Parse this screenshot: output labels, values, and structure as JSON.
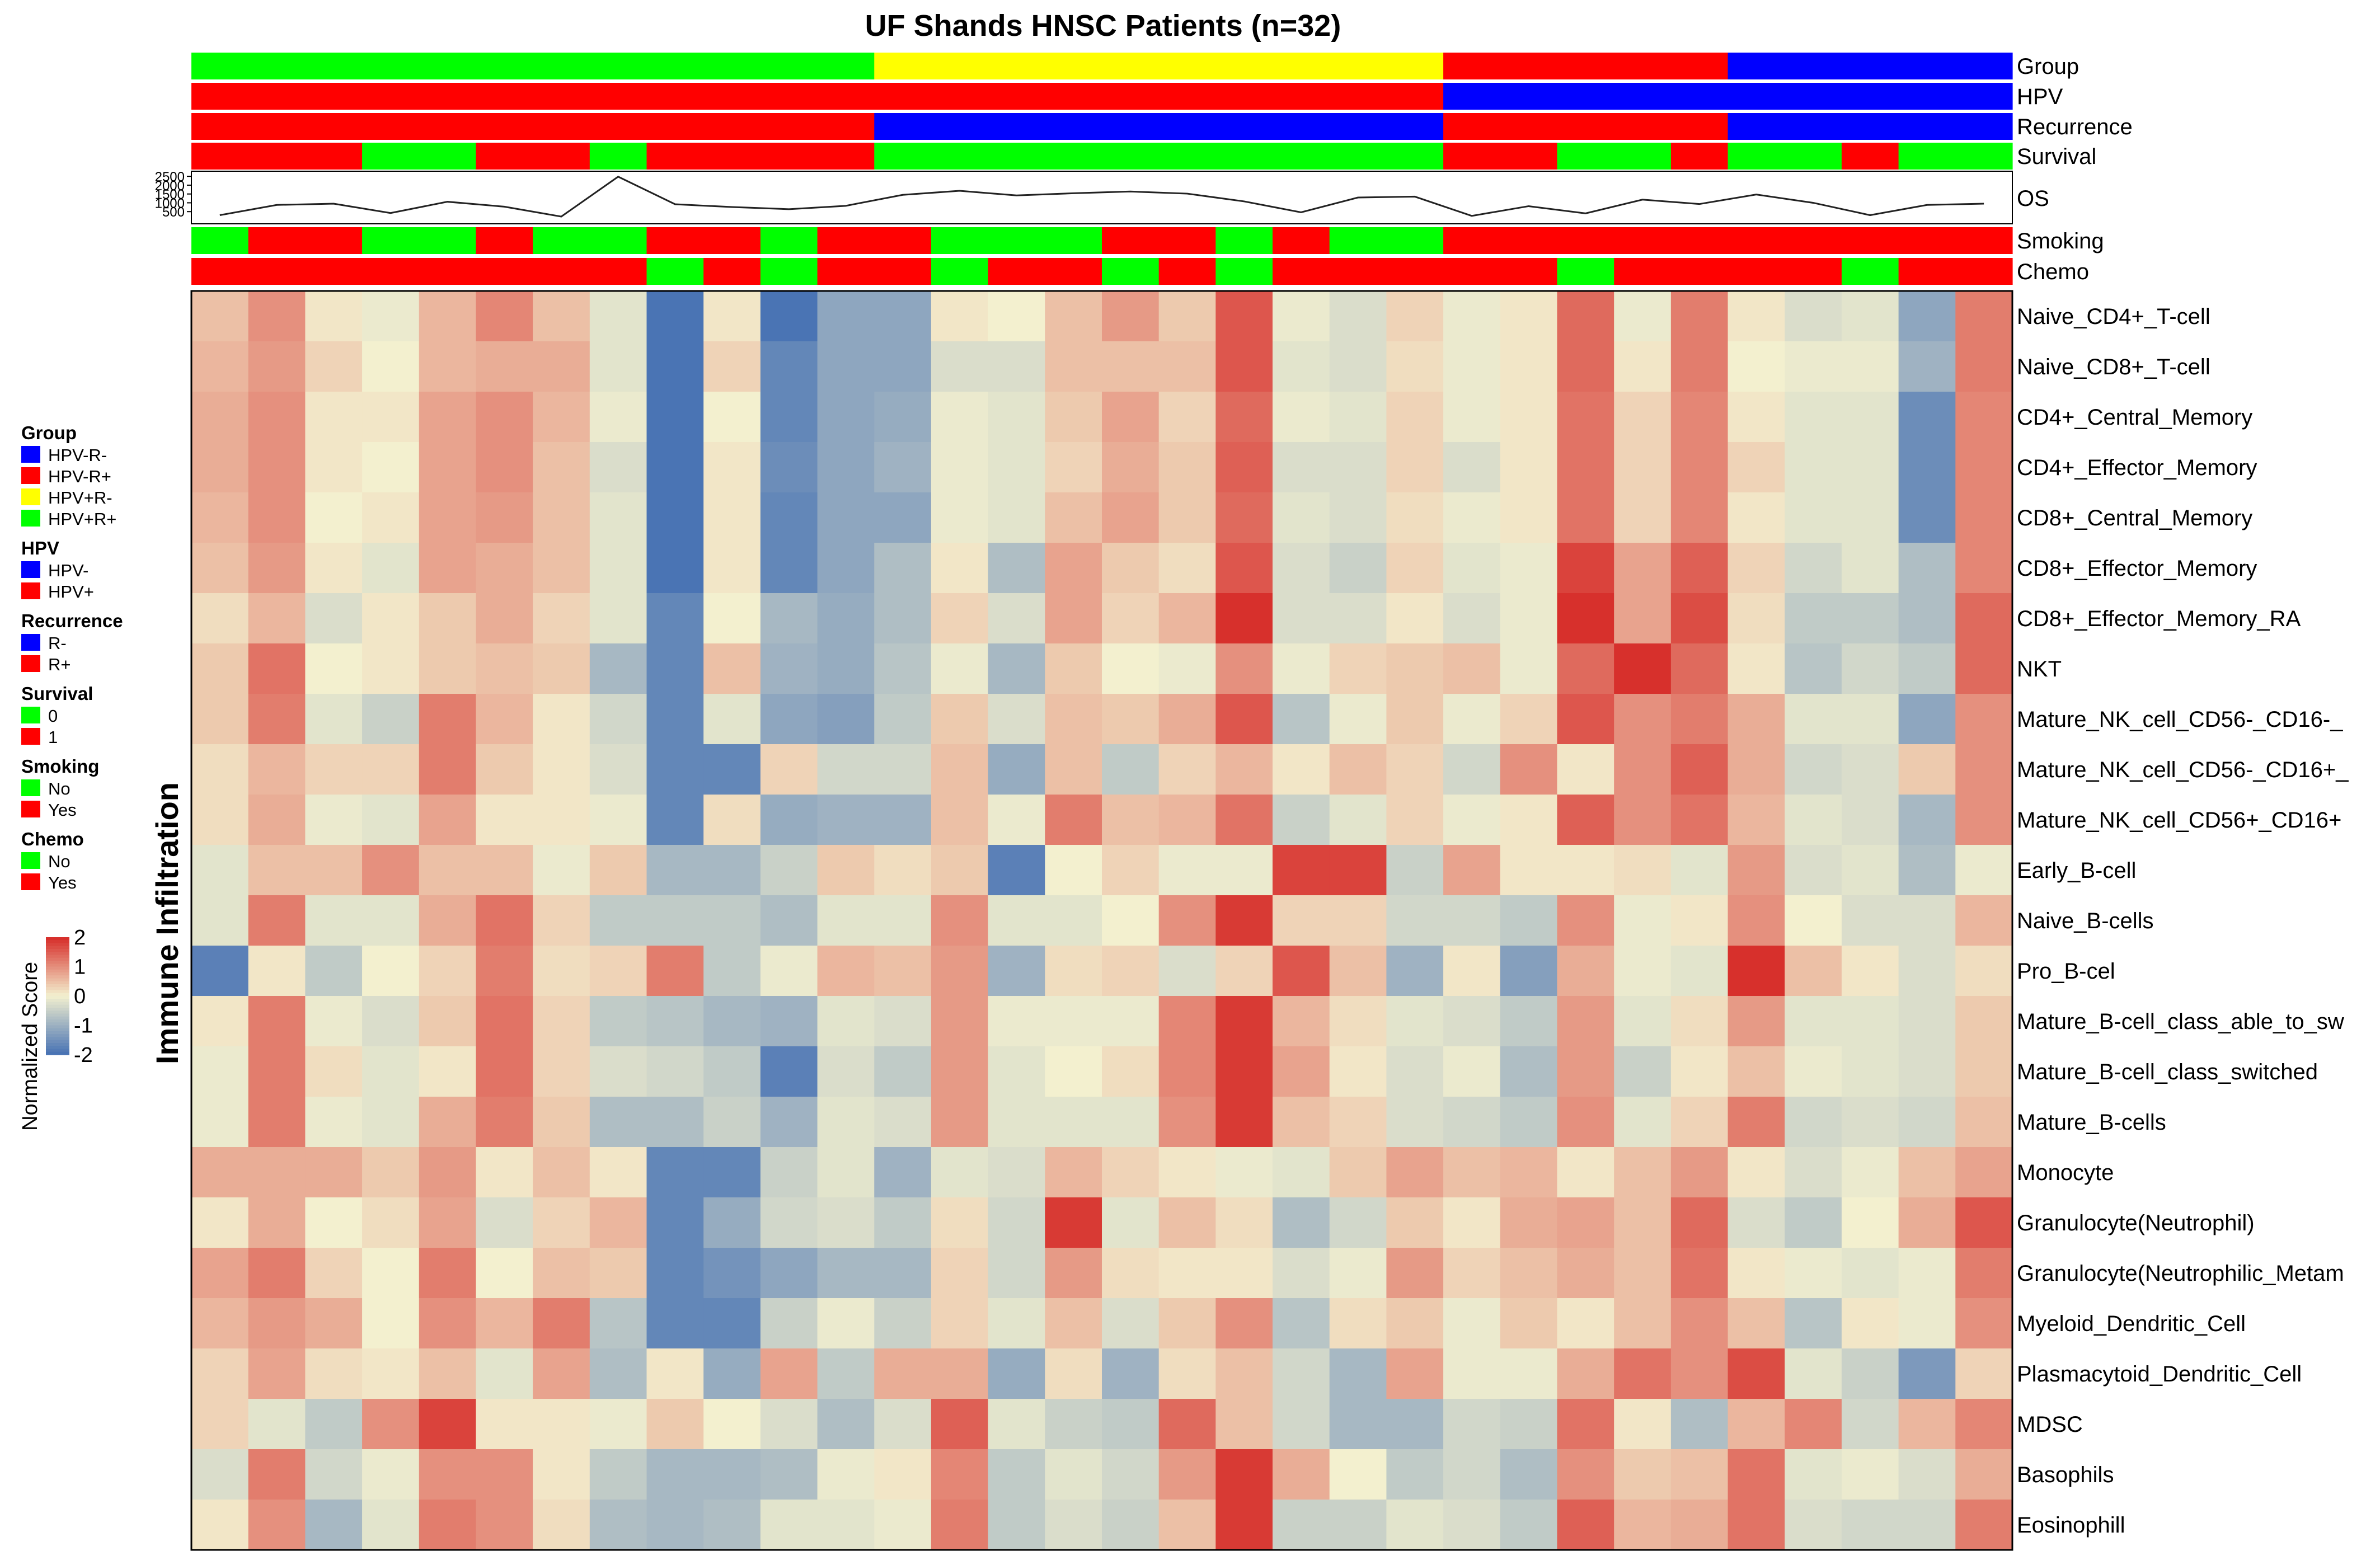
{
  "chart_data": {
    "type": "heatmap",
    "title": "UF Shands HNSC Patients (n=32)",
    "ylabel": "Immune Infiltration",
    "colorbar": {
      "label": "Normalized Score",
      "ticks": [
        "2",
        "1",
        "0",
        "-1",
        "-2"
      ],
      "range": [
        -2,
        2
      ],
      "colors": {
        "low": "#4a74b4",
        "mid": "#f3f0cf",
        "high": "#d7302c"
      }
    },
    "legend": [
      {
        "title": "Group",
        "entries": [
          {
            "label": "HPV-R-",
            "color": "#0000ff"
          },
          {
            "label": "HPV-R+",
            "color": "#ff0000"
          },
          {
            "label": "HPV+R-",
            "color": "#ffff00"
          },
          {
            "label": "HPV+R+",
            "color": "#00ff00"
          }
        ]
      },
      {
        "title": "HPV",
        "entries": [
          {
            "label": "HPV-",
            "color": "#0000ff"
          },
          {
            "label": "HPV+",
            "color": "#ff0000"
          }
        ]
      },
      {
        "title": "Recurrence",
        "entries": [
          {
            "label": "R-",
            "color": "#0000ff"
          },
          {
            "label": "R+",
            "color": "#ff0000"
          }
        ]
      },
      {
        "title": "Survival",
        "entries": [
          {
            "label": "0",
            "color": "#00ff00"
          },
          {
            "label": "1",
            "color": "#ff0000"
          }
        ]
      },
      {
        "title": "Smoking",
        "entries": [
          {
            "label": "No",
            "color": "#00ff00"
          },
          {
            "label": "Yes",
            "color": "#ff0000"
          }
        ]
      },
      {
        "title": "Chemo",
        "entries": [
          {
            "label": "No",
            "color": "#00ff00"
          },
          {
            "label": "Yes",
            "color": "#ff0000"
          }
        ]
      }
    ],
    "annotations": {
      "codes": {
        "G": "#00ff00",
        "R": "#ff0000",
        "B": "#0000ff",
        "Y": "#ffff00"
      },
      "tracks": [
        {
          "name": "Group",
          "values": "GGGGGGGGGGGGYYYYYYYYYYRRRRRBBBBB"
        },
        {
          "name": "HPV",
          "values": "RRRRRRRRRRRRRRRRRRRRRRBBBBBBBBBB"
        },
        {
          "name": "Recurrence",
          "values": "RRRRRRRRRRRRBBBBBBBBBBRRRRRBBBBB"
        },
        {
          "name": "Survival",
          "values": "RRRGGRRGRRRRGGGGGGGGGGRRGGRGGRGG"
        }
      ],
      "tracks_lower": [
        {
          "name": "Smoking",
          "values": "GRRGGRGGRRGRRGGGRRGRGGRRRRRRRRRR"
        },
        {
          "name": "Chemo",
          "values": "RRRRRRRRGRGRRGRRGRGRRRRRGRRRRGRR"
        }
      ]
    },
    "os_track": {
      "name": "OS",
      "yticks": [
        "2500",
        "2000",
        "1500",
        "1000",
        "500"
      ],
      "ymin": 0,
      "ymax": 2600,
      "values": [
        300,
        880,
        950,
        420,
        1060,
        780,
        220,
        2480,
        920,
        760,
        640,
        830,
        1450,
        1680,
        1420,
        1540,
        1640,
        1520,
        1080,
        460,
        1300,
        1350,
        260,
        810,
        400,
        1180,
        930,
        1470,
        1000,
        300,
        880,
        950
      ]
    },
    "rows": [
      "Naive_CD4+_T-cell",
      "Naive_CD8+_T-cell",
      "CD4+_Central_Memory",
      "CD4+_Effector_Memory",
      "CD8+_Central_Memory",
      "CD8+_Effector_Memory",
      "CD8+_Effector_Memory_RA",
      "NKT",
      "Mature_NK_cell_CD56-_CD16-_",
      "Mature_NK_cell_CD56-_CD16+_",
      "Mature_NK_cell_CD56+_CD16+",
      "Early_B-cell",
      "Naive_B-cells",
      "Pro_B-cel",
      "Mature_B-cell_class_able_to_sw",
      "Mature_B-cell_class_switched",
      "Mature_B-cells",
      "Monocyte",
      "Granulocyte(Neutrophil)",
      "Granulocyte(Neutrophilic_Metam",
      "Myeloid_Dendritic_Cell",
      "Plasmacytoid_Dendritic_Cell",
      "MDSC",
      "Basophils",
      "Eosinophill"
    ],
    "values": [
      [
        0.5,
        1.0,
        0.1,
        -0.1,
        0.6,
        1.1,
        0.5,
        -0.2,
        -2.0,
        0.1,
        -2.0,
        -1.2,
        -1.2,
        0.1,
        0.0,
        0.5,
        0.9,
        0.4,
        1.6,
        -0.1,
        -0.3,
        0.3,
        -0.1,
        0.1,
        1.4,
        -0.1,
        1.2,
        0.1,
        -0.3,
        -0.2,
        -1.2,
        1.2
      ],
      [
        0.6,
        0.9,
        0.3,
        0.0,
        0.6,
        0.7,
        0.7,
        -0.2,
        -2.0,
        0.3,
        -1.7,
        -1.2,
        -1.2,
        -0.3,
        -0.3,
        0.5,
        0.5,
        0.5,
        1.6,
        -0.2,
        -0.3,
        0.2,
        -0.1,
        0.1,
        1.4,
        0.1,
        1.2,
        0.0,
        -0.1,
        -0.1,
        -1.0,
        1.2
      ],
      [
        0.7,
        1.0,
        0.1,
        0.1,
        0.8,
        1.0,
        0.6,
        -0.1,
        -2.0,
        0.0,
        -1.7,
        -1.2,
        -1.1,
        -0.1,
        -0.2,
        0.4,
        0.8,
        0.3,
        1.4,
        -0.1,
        -0.2,
        0.3,
        -0.1,
        0.1,
        1.3,
        0.3,
        1.1,
        0.1,
        -0.2,
        -0.2,
        -1.6,
        1.1
      ],
      [
        0.7,
        1.0,
        0.1,
        0.0,
        0.8,
        1.0,
        0.5,
        -0.3,
        -2.0,
        0.1,
        -1.6,
        -1.2,
        -1.0,
        -0.1,
        -0.2,
        0.3,
        0.7,
        0.4,
        1.5,
        -0.3,
        -0.3,
        0.3,
        -0.3,
        0.1,
        1.3,
        0.3,
        1.1,
        0.3,
        -0.2,
        -0.2,
        -1.6,
        1.1
      ],
      [
        0.6,
        1.0,
        0.0,
        0.1,
        0.8,
        0.9,
        0.5,
        -0.2,
        -2.0,
        0.1,
        -1.7,
        -1.2,
        -1.2,
        -0.1,
        -0.2,
        0.5,
        0.8,
        0.4,
        1.4,
        -0.2,
        -0.3,
        0.2,
        -0.1,
        0.1,
        1.3,
        0.3,
        1.1,
        0.1,
        -0.2,
        -0.2,
        -1.6,
        1.1
      ],
      [
        0.5,
        0.9,
        0.1,
        -0.2,
        0.8,
        0.7,
        0.5,
        -0.2,
        -2.0,
        0.1,
        -1.7,
        -1.2,
        -0.8,
        0.1,
        -0.8,
        0.8,
        0.4,
        0.2,
        1.6,
        -0.3,
        -0.5,
        0.3,
        -0.2,
        -0.1,
        1.8,
        0.8,
        1.5,
        0.3,
        -0.4,
        -0.2,
        -0.8,
        1.1
      ],
      [
        0.2,
        0.6,
        -0.3,
        0.1,
        0.4,
        0.7,
        0.3,
        -0.2,
        -1.7,
        0.0,
        -0.9,
        -1.1,
        -0.8,
        0.3,
        -0.3,
        0.8,
        0.3,
        0.6,
        2.0,
        -0.3,
        -0.3,
        0.1,
        -0.3,
        -0.1,
        2.0,
        0.8,
        1.7,
        0.2,
        -0.6,
        -0.6,
        -0.8,
        1.4
      ],
      [
        0.4,
        1.3,
        0.0,
        0.1,
        0.4,
        0.5,
        0.4,
        -0.9,
        -1.7,
        0.5,
        -1.0,
        -1.1,
        -0.7,
        -0.1,
        -0.9,
        0.4,
        0.0,
        -0.1,
        1.0,
        -0.1,
        0.3,
        0.4,
        0.5,
        -0.1,
        1.4,
        2.0,
        1.4,
        0.1,
        -0.7,
        -0.4,
        -0.6,
        1.4
      ],
      [
        0.4,
        1.2,
        -0.2,
        -0.5,
        1.2,
        0.6,
        0.1,
        -0.4,
        -1.7,
        -0.2,
        -1.2,
        -1.3,
        -0.6,
        0.4,
        -0.3,
        0.5,
        0.4,
        0.7,
        1.6,
        -0.7,
        -0.1,
        0.4,
        -0.1,
        0.3,
        1.6,
        1.0,
        1.2,
        0.7,
        -0.2,
        -0.2,
        -1.2,
        1.0
      ],
      [
        0.2,
        0.6,
        0.3,
        0.3,
        1.2,
        0.4,
        0.1,
        -0.3,
        -1.7,
        -1.7,
        0.3,
        -0.4,
        -0.4,
        0.5,
        -1.1,
        0.5,
        -0.6,
        0.3,
        0.6,
        0.1,
        0.5,
        0.3,
        -0.4,
        1.0,
        0.1,
        1.0,
        1.5,
        0.7,
        -0.4,
        -0.3,
        0.4,
        1.0
      ],
      [
        0.2,
        0.7,
        -0.1,
        -0.2,
        0.8,
        0.1,
        0.1,
        -0.1,
        -1.7,
        0.2,
        -1.1,
        -1.0,
        -1.0,
        0.5,
        -0.1,
        1.2,
        0.5,
        0.6,
        1.3,
        -0.5,
        -0.2,
        0.3,
        -0.1,
        0.1,
        1.5,
        1.0,
        1.3,
        0.6,
        -0.2,
        -0.3,
        -0.9,
        1.0
      ],
      [
        -0.2,
        0.5,
        0.5,
        1.0,
        0.5,
        0.5,
        -0.1,
        0.4,
        -0.9,
        -0.9,
        -0.5,
        0.4,
        0.2,
        0.4,
        -1.8,
        0.0,
        0.3,
        -0.1,
        -0.1,
        1.8,
        1.8,
        -0.5,
        0.8,
        0.1,
        0.1,
        0.2,
        -0.2,
        0.9,
        -0.3,
        -0.2,
        -0.8,
        -0.1
      ],
      [
        -0.2,
        1.2,
        -0.2,
        -0.2,
        0.7,
        1.3,
        0.3,
        -0.6,
        -0.6,
        -0.6,
        -0.8,
        -0.2,
        -0.2,
        1.0,
        -0.2,
        -0.2,
        0.0,
        1.0,
        1.9,
        0.3,
        0.3,
        -0.4,
        -0.4,
        -0.6,
        1.0,
        -0.1,
        0.1,
        1.0,
        0.0,
        -0.3,
        -0.3,
        0.6
      ],
      [
        -1.8,
        0.1,
        -0.6,
        0.0,
        0.3,
        1.2,
        0.2,
        0.3,
        1.2,
        -0.6,
        -0.1,
        0.6,
        0.5,
        0.9,
        -1.0,
        0.2,
        0.3,
        -0.3,
        0.3,
        1.6,
        0.5,
        -1.0,
        0.1,
        -1.3,
        0.7,
        -0.1,
        -0.2,
        2.0,
        0.5,
        0.1,
        -0.3,
        0.2
      ],
      [
        0.1,
        1.2,
        -0.1,
        -0.3,
        0.4,
        1.3,
        0.3,
        -0.6,
        -0.7,
        -0.9,
        -1.0,
        -0.2,
        -0.3,
        0.9,
        -0.1,
        -0.1,
        -0.1,
        1.1,
        1.9,
        0.6,
        0.2,
        -0.2,
        -0.3,
        -0.6,
        0.9,
        -0.2,
        0.2,
        0.9,
        -0.2,
        -0.2,
        -0.3,
        0.4
      ],
      [
        -0.1,
        1.2,
        0.2,
        -0.2,
        0.1,
        1.3,
        0.3,
        -0.3,
        -0.4,
        -0.6,
        -1.8,
        -0.3,
        -0.6,
        0.9,
        -0.2,
        0.0,
        0.2,
        1.1,
        1.9,
        0.8,
        0.1,
        -0.3,
        -0.1,
        -0.8,
        0.9,
        -0.5,
        0.1,
        0.5,
        -0.1,
        -0.2,
        -0.3,
        0.4
      ],
      [
        -0.1,
        1.2,
        -0.1,
        -0.2,
        0.7,
        1.2,
        0.4,
        -0.8,
        -0.8,
        -0.5,
        -1.0,
        -0.2,
        -0.3,
        0.9,
        -0.2,
        -0.2,
        -0.2,
        1.0,
        1.9,
        0.5,
        0.3,
        -0.3,
        -0.4,
        -0.6,
        1.0,
        -0.2,
        0.3,
        1.2,
        -0.4,
        -0.3,
        -0.4,
        0.5
      ],
      [
        0.7,
        0.7,
        0.7,
        0.4,
        0.9,
        0.1,
        0.5,
        0.1,
        -1.7,
        -1.7,
        -0.5,
        -0.2,
        -1.0,
        -0.2,
        -0.3,
        0.6,
        0.3,
        0.1,
        -0.1,
        -0.2,
        0.4,
        0.8,
        0.5,
        0.6,
        0.1,
        0.5,
        0.9,
        0.1,
        -0.3,
        -0.1,
        0.5,
        0.8
      ],
      [
        0.1,
        0.7,
        0.0,
        0.2,
        0.8,
        -0.3,
        0.3,
        0.6,
        -1.7,
        -1.1,
        -0.4,
        -0.3,
        -0.6,
        0.2,
        -0.4,
        1.9,
        -0.2,
        0.5,
        0.2,
        -0.8,
        -0.4,
        0.4,
        0.1,
        0.7,
        0.8,
        0.5,
        1.4,
        -0.3,
        -0.6,
        0.0,
        0.7,
        1.6
      ],
      [
        0.8,
        1.2,
        0.3,
        0.0,
        1.2,
        0.0,
        0.5,
        0.4,
        -1.7,
        -1.5,
        -1.2,
        -0.9,
        -0.9,
        0.3,
        -0.4,
        0.9,
        0.2,
        0.1,
        0.1,
        -0.3,
        -0.1,
        0.9,
        0.3,
        0.5,
        0.7,
        0.5,
        1.3,
        0.1,
        -0.1,
        -0.2,
        -0.1,
        1.2
      ],
      [
        0.6,
        0.9,
        0.7,
        0.0,
        1.0,
        0.6,
        1.2,
        -0.7,
        -1.7,
        -1.7,
        -0.5,
        -0.1,
        -0.5,
        0.3,
        -0.2,
        0.5,
        -0.3,
        0.4,
        1.0,
        -0.7,
        0.2,
        0.4,
        -0.1,
        0.4,
        0.1,
        0.5,
        1.0,
        0.5,
        -0.7,
        0.1,
        -0.1,
        1.0
      ],
      [
        0.3,
        0.8,
        0.2,
        0.1,
        0.5,
        -0.2,
        0.8,
        -0.8,
        0.1,
        -1.1,
        0.8,
        -0.6,
        0.7,
        0.7,
        -1.1,
        0.2,
        -1.0,
        0.2,
        0.5,
        -0.4,
        -0.9,
        0.8,
        -0.1,
        -0.1,
        0.7,
        1.3,
        1.0,
        1.7,
        -0.2,
        -0.5,
        -1.4,
        0.3
      ],
      [
        0.3,
        -0.2,
        -0.6,
        1.0,
        1.8,
        0.1,
        0.1,
        -0.1,
        0.4,
        0.0,
        -0.3,
        -0.8,
        -0.3,
        1.5,
        -0.2,
        -0.5,
        -0.6,
        1.4,
        0.5,
        -0.4,
        -0.9,
        -0.9,
        -0.4,
        -0.5,
        1.3,
        0.1,
        -0.8,
        0.6,
        1.1,
        -0.4,
        0.6,
        1.1
      ],
      [
        -0.3,
        1.2,
        -0.4,
        -0.1,
        1.0,
        1.0,
        0.1,
        -0.6,
        -0.9,
        -0.9,
        -0.8,
        -0.1,
        0.1,
        1.1,
        -0.6,
        -0.2,
        -0.4,
        0.9,
        1.9,
        0.7,
        0.0,
        -0.6,
        -0.4,
        -0.8,
        1.0,
        0.4,
        0.5,
        1.3,
        -0.2,
        -0.1,
        -0.3,
        0.7
      ],
      [
        0.1,
        1.0,
        -0.9,
        -0.2,
        1.2,
        1.0,
        0.2,
        -0.8,
        -0.9,
        -0.8,
        -0.2,
        -0.2,
        -0.1,
        1.2,
        -0.6,
        -0.3,
        -0.5,
        0.5,
        1.9,
        -0.5,
        -0.5,
        -0.2,
        -0.3,
        -0.6,
        1.5,
        0.6,
        0.7,
        1.3,
        -0.3,
        -0.4,
        -0.4,
        1.2
      ]
    ]
  }
}
